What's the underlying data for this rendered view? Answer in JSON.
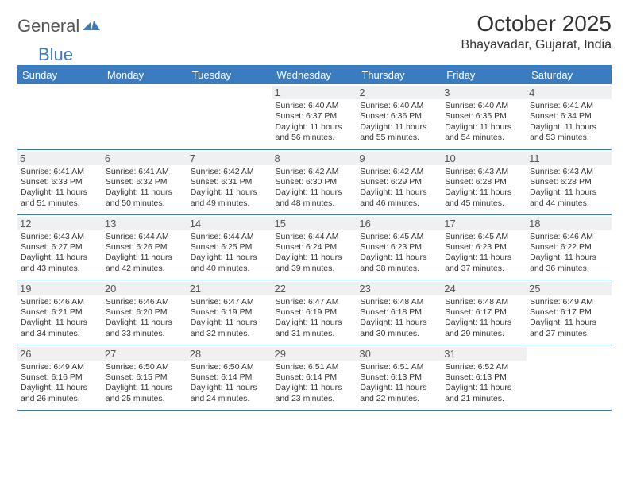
{
  "brand": {
    "name1": "General",
    "name2": "Blue",
    "icon_color": "#3b7bbf"
  },
  "title": "October 2025",
  "location": "Bhayavadar, Gujarat, India",
  "colors": {
    "header_bg": "#3b7bbf",
    "header_fg": "#ffffff",
    "daynum_bg": "#eef0f2",
    "row_border": "#3b7bbf"
  },
  "weekday_labels": [
    "Sunday",
    "Monday",
    "Tuesday",
    "Wednesday",
    "Thursday",
    "Friday",
    "Saturday"
  ],
  "weeks": [
    [
      null,
      null,
      null,
      {
        "d": "1",
        "sr": "6:40 AM",
        "ss": "6:37 PM",
        "dl": "11 hours and 56 minutes."
      },
      {
        "d": "2",
        "sr": "6:40 AM",
        "ss": "6:36 PM",
        "dl": "11 hours and 55 minutes."
      },
      {
        "d": "3",
        "sr": "6:40 AM",
        "ss": "6:35 PM",
        "dl": "11 hours and 54 minutes."
      },
      {
        "d": "4",
        "sr": "6:41 AM",
        "ss": "6:34 PM",
        "dl": "11 hours and 53 minutes."
      }
    ],
    [
      {
        "d": "5",
        "sr": "6:41 AM",
        "ss": "6:33 PM",
        "dl": "11 hours and 51 minutes."
      },
      {
        "d": "6",
        "sr": "6:41 AM",
        "ss": "6:32 PM",
        "dl": "11 hours and 50 minutes."
      },
      {
        "d": "7",
        "sr": "6:42 AM",
        "ss": "6:31 PM",
        "dl": "11 hours and 49 minutes."
      },
      {
        "d": "8",
        "sr": "6:42 AM",
        "ss": "6:30 PM",
        "dl": "11 hours and 48 minutes."
      },
      {
        "d": "9",
        "sr": "6:42 AM",
        "ss": "6:29 PM",
        "dl": "11 hours and 46 minutes."
      },
      {
        "d": "10",
        "sr": "6:43 AM",
        "ss": "6:28 PM",
        "dl": "11 hours and 45 minutes."
      },
      {
        "d": "11",
        "sr": "6:43 AM",
        "ss": "6:28 PM",
        "dl": "11 hours and 44 minutes."
      }
    ],
    [
      {
        "d": "12",
        "sr": "6:43 AM",
        "ss": "6:27 PM",
        "dl": "11 hours and 43 minutes."
      },
      {
        "d": "13",
        "sr": "6:44 AM",
        "ss": "6:26 PM",
        "dl": "11 hours and 42 minutes."
      },
      {
        "d": "14",
        "sr": "6:44 AM",
        "ss": "6:25 PM",
        "dl": "11 hours and 40 minutes."
      },
      {
        "d": "15",
        "sr": "6:44 AM",
        "ss": "6:24 PM",
        "dl": "11 hours and 39 minutes."
      },
      {
        "d": "16",
        "sr": "6:45 AM",
        "ss": "6:23 PM",
        "dl": "11 hours and 38 minutes."
      },
      {
        "d": "17",
        "sr": "6:45 AM",
        "ss": "6:23 PM",
        "dl": "11 hours and 37 minutes."
      },
      {
        "d": "18",
        "sr": "6:46 AM",
        "ss": "6:22 PM",
        "dl": "11 hours and 36 minutes."
      }
    ],
    [
      {
        "d": "19",
        "sr": "6:46 AM",
        "ss": "6:21 PM",
        "dl": "11 hours and 34 minutes."
      },
      {
        "d": "20",
        "sr": "6:46 AM",
        "ss": "6:20 PM",
        "dl": "11 hours and 33 minutes."
      },
      {
        "d": "21",
        "sr": "6:47 AM",
        "ss": "6:19 PM",
        "dl": "11 hours and 32 minutes."
      },
      {
        "d": "22",
        "sr": "6:47 AM",
        "ss": "6:19 PM",
        "dl": "11 hours and 31 minutes."
      },
      {
        "d": "23",
        "sr": "6:48 AM",
        "ss": "6:18 PM",
        "dl": "11 hours and 30 minutes."
      },
      {
        "d": "24",
        "sr": "6:48 AM",
        "ss": "6:17 PM",
        "dl": "11 hours and 29 minutes."
      },
      {
        "d": "25",
        "sr": "6:49 AM",
        "ss": "6:17 PM",
        "dl": "11 hours and 27 minutes."
      }
    ],
    [
      {
        "d": "26",
        "sr": "6:49 AM",
        "ss": "6:16 PM",
        "dl": "11 hours and 26 minutes."
      },
      {
        "d": "27",
        "sr": "6:50 AM",
        "ss": "6:15 PM",
        "dl": "11 hours and 25 minutes."
      },
      {
        "d": "28",
        "sr": "6:50 AM",
        "ss": "6:14 PM",
        "dl": "11 hours and 24 minutes."
      },
      {
        "d": "29",
        "sr": "6:51 AM",
        "ss": "6:14 PM",
        "dl": "11 hours and 23 minutes."
      },
      {
        "d": "30",
        "sr": "6:51 AM",
        "ss": "6:13 PM",
        "dl": "11 hours and 22 minutes."
      },
      {
        "d": "31",
        "sr": "6:52 AM",
        "ss": "6:13 PM",
        "dl": "11 hours and 21 minutes."
      },
      null
    ]
  ],
  "labels": {
    "sunrise": "Sunrise:",
    "sunset": "Sunset:",
    "daylight": "Daylight:"
  }
}
